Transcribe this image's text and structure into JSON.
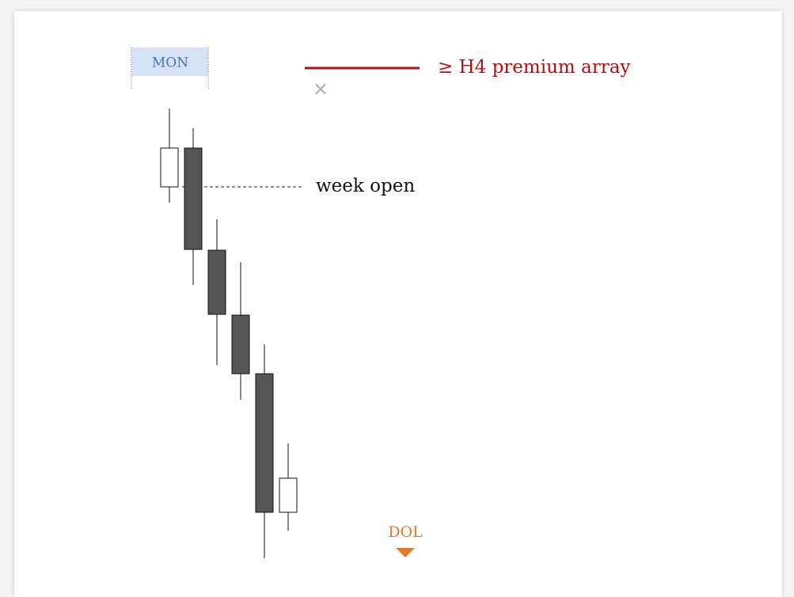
{
  "chart_data": {
    "type": "candlestick",
    "open": [
      484,
      533,
      404,
      322,
      248,
      73
    ],
    "high": [
      583,
      558,
      443,
      389,
      285,
      160
    ],
    "low": [
      464,
      360,
      259,
      215,
      15,
      50
    ],
    "close": [
      533,
      405,
      323,
      248,
      73,
      116
    ],
    "up_color": "#ffffff",
    "down_color": "#555555",
    "ylim": [
      0,
      600
    ],
    "session_label": "MON",
    "level": {
      "label": "week open",
      "value": 484
    },
    "legend": {
      "label": "≥ H4 premium array",
      "color": "#b01010"
    },
    "target_label": "DOL"
  }
}
